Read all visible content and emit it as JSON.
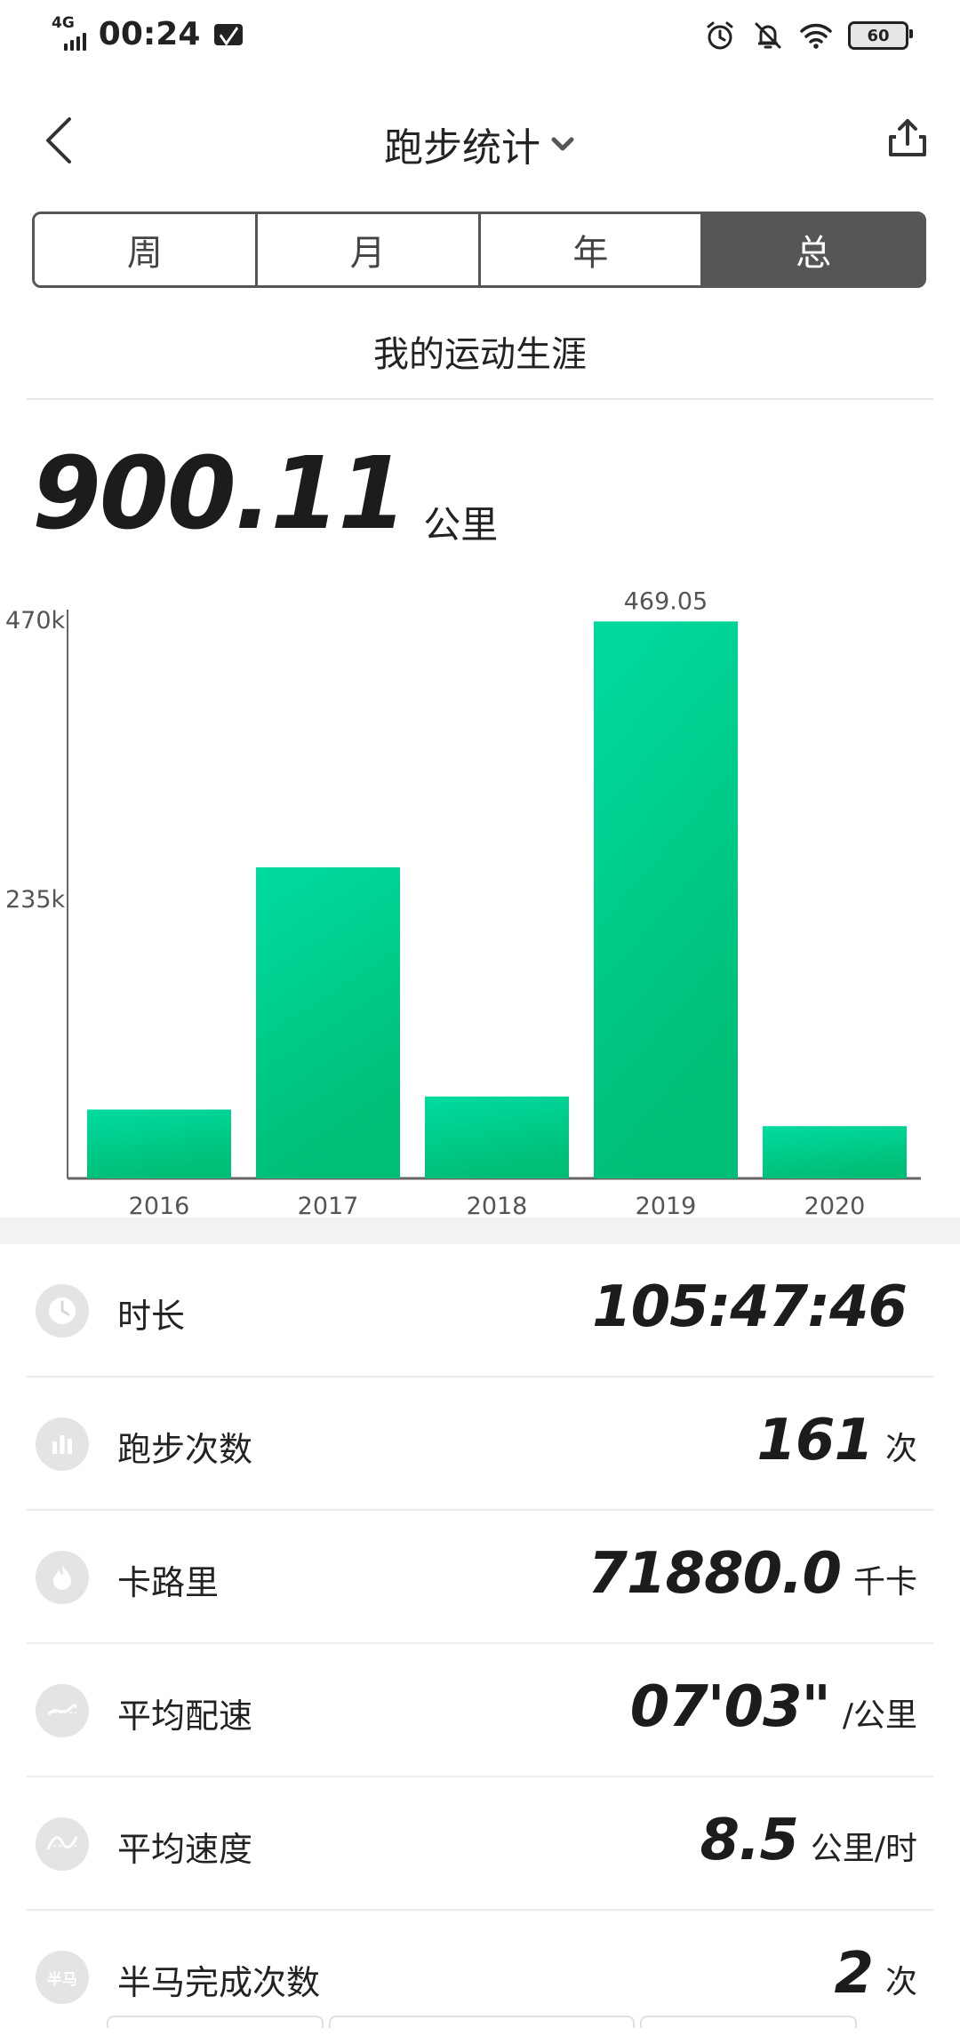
{
  "status_bar": {
    "network": "4G",
    "time": "00:24",
    "battery": "60"
  },
  "header": {
    "title": "跑步统计"
  },
  "tabs": [
    {
      "label": "周",
      "active": false
    },
    {
      "label": "月",
      "active": false
    },
    {
      "label": "年",
      "active": false
    },
    {
      "label": "总",
      "active": true
    }
  ],
  "subtitle": "我的运动生涯",
  "total": {
    "value": "900.11",
    "unit": "公里"
  },
  "chart_data": {
    "type": "bar",
    "categories": [
      "2016",
      "2017",
      "2018",
      "2019",
      "2020"
    ],
    "values": [
      58,
      262,
      69,
      469.05,
      44
    ],
    "data_labels": [
      null,
      null,
      null,
      "469.05",
      null
    ],
    "y_ticks": [
      "470k",
      "235k"
    ],
    "ylim": [
      0,
      470
    ],
    "color_top": "#00dba0",
    "color_bottom": "#00be76"
  },
  "stats": [
    {
      "icon": "clock-icon",
      "label": "时长",
      "value": "105:47:46",
      "unit": ""
    },
    {
      "icon": "bar-chart-icon",
      "label": "跑步次数",
      "value": "161",
      "unit": "次"
    },
    {
      "icon": "flame-icon",
      "label": "卡路里",
      "value": "71880.0",
      "unit": "千卡"
    },
    {
      "icon": "pace-icon",
      "label": "平均配速",
      "value": "07'03\"",
      "unit": "/公里"
    },
    {
      "icon": "speed-icon",
      "label": "平均速度",
      "value": "8.5",
      "unit": "公里/时"
    },
    {
      "icon": "half-marathon-icon",
      "icon_text": "半马",
      "label": "半马完成次数",
      "value": "2",
      "unit": "次"
    }
  ]
}
